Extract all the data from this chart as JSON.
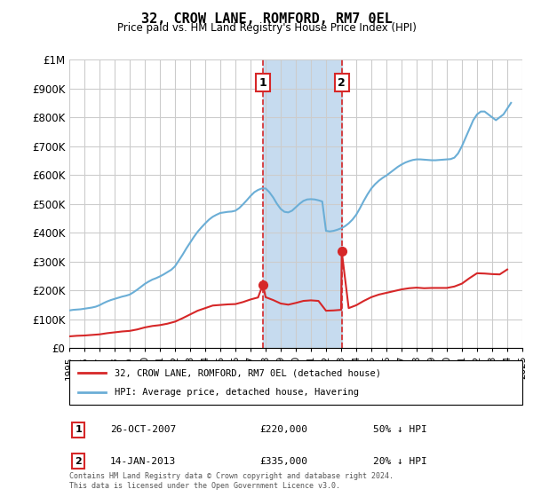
{
  "title": "32, CROW LANE, ROMFORD, RM7 0EL",
  "subtitle": "Price paid vs. HM Land Registry's House Price Index (HPI)",
  "ylabel_ticks": [
    "£0",
    "£100K",
    "£200K",
    "£300K",
    "£400K",
    "£500K",
    "£600K",
    "£700K",
    "£800K",
    "£900K",
    "£1M"
  ],
  "ytick_values": [
    0,
    100000,
    200000,
    300000,
    400000,
    500000,
    600000,
    700000,
    800000,
    900000,
    1000000
  ],
  "ylim": [
    0,
    1000000
  ],
  "xlim_years": [
    1995,
    2025
  ],
  "xtick_years": [
    1995,
    1996,
    1997,
    1998,
    1999,
    2000,
    2001,
    2002,
    2003,
    2004,
    2005,
    2006,
    2007,
    2008,
    2009,
    2010,
    2011,
    2012,
    2013,
    2014,
    2015,
    2016,
    2017,
    2018,
    2019,
    2020,
    2021,
    2022,
    2023,
    2024,
    2025
  ],
  "sale1_year": 2007.82,
  "sale1_price": 220000,
  "sale1_label": "1",
  "sale1_date": "26-OCT-2007",
  "sale1_text": "£220,000",
  "sale1_hpi": "50% ↓ HPI",
  "sale2_year": 2013.04,
  "sale2_price": 335000,
  "sale2_label": "2",
  "sale2_date": "14-JAN-2013",
  "sale2_text": "£335,000",
  "sale2_hpi": "20% ↓ HPI",
  "shade_x1": 2007.82,
  "shade_x2": 2013.04,
  "hpi_color": "#6baed6",
  "sale_color": "#d62728",
  "shade_color": "#c6dbef",
  "grid_color": "#cccccc",
  "legend1": "32, CROW LANE, ROMFORD, RM7 0EL (detached house)",
  "legend2": "HPI: Average price, detached house, Havering",
  "footer": "Contains HM Land Registry data © Crown copyright and database right 2024.\nThis data is licensed under the Open Government Licence v3.0.",
  "hpi_data": {
    "years": [
      1995.0,
      1995.25,
      1995.5,
      1995.75,
      1996.0,
      1996.25,
      1996.5,
      1996.75,
      1997.0,
      1997.25,
      1997.5,
      1997.75,
      1998.0,
      1998.25,
      1998.5,
      1998.75,
      1999.0,
      1999.25,
      1999.5,
      1999.75,
      2000.0,
      2000.25,
      2000.5,
      2000.75,
      2001.0,
      2001.25,
      2001.5,
      2001.75,
      2002.0,
      2002.25,
      2002.5,
      2002.75,
      2003.0,
      2003.25,
      2003.5,
      2003.75,
      2004.0,
      2004.25,
      2004.5,
      2004.75,
      2005.0,
      2005.25,
      2005.5,
      2005.75,
      2006.0,
      2006.25,
      2006.5,
      2006.75,
      2007.0,
      2007.25,
      2007.5,
      2007.75,
      2008.0,
      2008.25,
      2008.5,
      2008.75,
      2009.0,
      2009.25,
      2009.5,
      2009.75,
      2010.0,
      2010.25,
      2010.5,
      2010.75,
      2011.0,
      2011.25,
      2011.5,
      2011.75,
      2012.0,
      2012.25,
      2012.5,
      2012.75,
      2013.0,
      2013.25,
      2013.5,
      2013.75,
      2014.0,
      2014.25,
      2014.5,
      2014.75,
      2015.0,
      2015.25,
      2015.5,
      2015.75,
      2016.0,
      2016.25,
      2016.5,
      2016.75,
      2017.0,
      2017.25,
      2017.5,
      2017.75,
      2018.0,
      2018.25,
      2018.5,
      2018.75,
      2019.0,
      2019.25,
      2019.5,
      2019.75,
      2020.0,
      2020.25,
      2020.5,
      2020.75,
      2021.0,
      2021.25,
      2021.5,
      2021.75,
      2022.0,
      2022.25,
      2022.5,
      2022.75,
      2023.0,
      2023.25,
      2023.5,
      2023.75,
      2024.0,
      2024.25
    ],
    "values": [
      130000,
      132000,
      133000,
      134000,
      136000,
      138000,
      140000,
      143000,
      148000,
      155000,
      161000,
      166000,
      170000,
      174000,
      178000,
      181000,
      185000,
      193000,
      202000,
      212000,
      222000,
      230000,
      237000,
      242000,
      248000,
      255000,
      263000,
      271000,
      283000,
      303000,
      323000,
      345000,
      365000,
      385000,
      403000,
      418000,
      432000,
      445000,
      455000,
      462000,
      468000,
      470000,
      472000,
      473000,
      476000,
      485000,
      498000,
      512000,
      527000,
      540000,
      548000,
      553000,
      553000,
      540000,
      522000,
      500000,
      482000,
      472000,
      470000,
      476000,
      488000,
      500000,
      510000,
      515000,
      516000,
      515000,
      512000,
      508000,
      406000,
      404000,
      406000,
      410000,
      415000,
      422000,
      432000,
      445000,
      462000,
      485000,
      510000,
      533000,
      553000,
      568000,
      580000,
      590000,
      598000,
      608000,
      618000,
      628000,
      636000,
      643000,
      648000,
      652000,
      654000,
      654000,
      653000,
      652000,
      651000,
      651000,
      652000,
      653000,
      654000,
      655000,
      660000,
      675000,
      700000,
      730000,
      760000,
      790000,
      810000,
      820000,
      820000,
      810000,
      800000,
      790000,
      800000,
      810000,
      830000,
      850000
    ]
  },
  "sale_hpi_data": {
    "years": [
      1995.0,
      1995.5,
      1996.0,
      1996.5,
      1997.0,
      1997.5,
      1998.0,
      1998.5,
      1999.0,
      1999.5,
      2000.0,
      2000.5,
      2001.0,
      2001.5,
      2002.0,
      2002.5,
      2003.0,
      2003.5,
      2004.0,
      2004.5,
      2005.0,
      2005.5,
      2006.0,
      2006.5,
      2007.0,
      2007.5,
      2007.82,
      2008.0,
      2008.5,
      2009.0,
      2009.5,
      2010.0,
      2010.5,
      2011.0,
      2011.5,
      2012.0,
      2012.5,
      2013.0,
      2013.04,
      2013.5,
      2014.0,
      2014.5,
      2015.0,
      2015.5,
      2016.0,
      2016.5,
      2017.0,
      2017.5,
      2018.0,
      2018.5,
      2019.0,
      2019.5,
      2020.0,
      2020.5,
      2021.0,
      2021.5,
      2022.0,
      2022.5,
      2023.0,
      2023.5,
      2024.0
    ],
    "values": [
      40000,
      42000,
      43000,
      45000,
      47000,
      51000,
      54000,
      57000,
      59000,
      64000,
      71000,
      76000,
      79000,
      84000,
      91000,
      103000,
      116000,
      129000,
      138000,
      147000,
      149000,
      151000,
      152000,
      159000,
      168000,
      175000,
      220000,
      176000,
      166000,
      154000,
      150000,
      156000,
      163000,
      165000,
      163000,
      129000,
      130000,
      132000,
      335000,
      138000,
      148000,
      163000,
      176000,
      185000,
      191000,
      197000,
      203000,
      207000,
      209000,
      207000,
      208000,
      208000,
      208000,
      213000,
      223000,
      242000,
      259000,
      258000,
      256000,
      255000,
      272000
    ]
  }
}
